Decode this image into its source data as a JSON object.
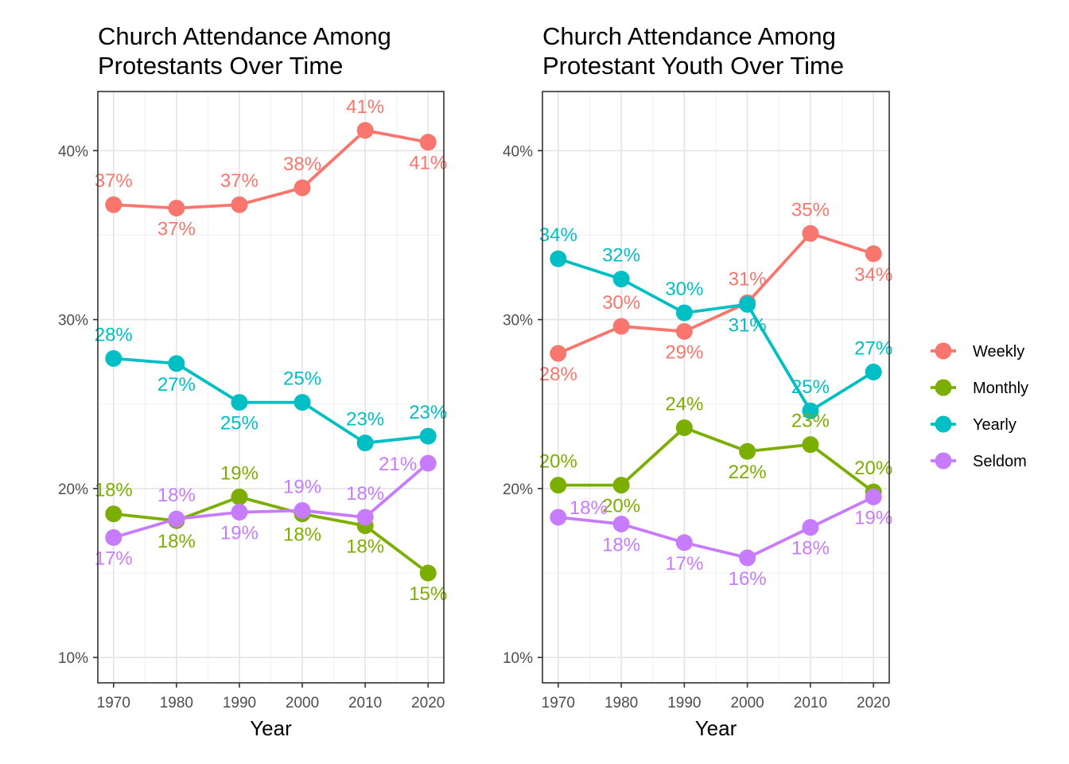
{
  "colors": {
    "Weekly": "#F8766D",
    "Monthly": "#7CAE00",
    "Yearly": "#00BFC4",
    "Seldom": "#C77CFF"
  },
  "legend": [
    "Weekly",
    "Monthly",
    "Yearly",
    "Seldom"
  ],
  "chart_data": [
    {
      "type": "line",
      "title_lines": [
        "Church Attendance Among",
        "Protestants Over Time"
      ],
      "xlabel": "Year",
      "ylabel": "",
      "x": [
        1970,
        1980,
        1990,
        2000,
        2010,
        2020
      ],
      "x_ticks": [
        "1970",
        "1980",
        "1990",
        "2000",
        "2010",
        "2020"
      ],
      "y_ticks": [
        {
          "v": 10,
          "label": "10%"
        },
        {
          "v": 20,
          "label": "20%"
        },
        {
          "v": 30,
          "label": "30%"
        },
        {
          "v": 40,
          "label": "40%"
        }
      ],
      "ylim": [
        8.5,
        43.5
      ],
      "grid": true,
      "series": [
        {
          "name": "Weekly",
          "values": [
            36.8,
            36.6,
            36.8,
            37.8,
            41.2,
            40.5
          ],
          "labels": [
            "37%",
            "37%",
            "37%",
            "38%",
            "41%",
            "41%"
          ],
          "pos": [
            "above",
            "below",
            "above",
            "above",
            "above",
            "below"
          ]
        },
        {
          "name": "Monthly",
          "values": [
            18.5,
            18.1,
            19.5,
            18.5,
            17.8,
            15.0
          ],
          "labels": [
            "18%",
            "18%",
            "19%",
            "18%",
            "18%",
            "15%"
          ],
          "pos": [
            "above",
            "below",
            "above",
            "below",
            "below",
            "below"
          ]
        },
        {
          "name": "Yearly",
          "values": [
            27.7,
            27.4,
            25.1,
            25.1,
            22.7,
            23.1
          ],
          "labels": [
            "28%",
            "27%",
            "25%",
            "25%",
            "23%",
            "23%"
          ],
          "pos": [
            "above",
            "below",
            "below",
            "above",
            "above",
            "above"
          ]
        },
        {
          "name": "Seldom",
          "values": [
            17.1,
            18.2,
            18.6,
            18.7,
            18.3,
            21.5
          ],
          "labels": [
            "17%",
            "18%",
            "19%",
            "19%",
            "18%",
            "21%"
          ],
          "pos": [
            "below",
            "above",
            "below",
            "above",
            "above",
            "left"
          ]
        }
      ]
    },
    {
      "type": "line",
      "title_lines": [
        "Church Attendance Among",
        "Protestant Youth Over Time"
      ],
      "xlabel": "Year",
      "ylabel": "",
      "x": [
        1970,
        1980,
        1990,
        2000,
        2010,
        2020
      ],
      "x_ticks": [
        "1970",
        "1980",
        "1990",
        "2000",
        "2010",
        "2020"
      ],
      "y_ticks": [
        {
          "v": 10,
          "label": "10%"
        },
        {
          "v": 20,
          "label": "20%"
        },
        {
          "v": 30,
          "label": "30%"
        },
        {
          "v": 40,
          "label": "40%"
        }
      ],
      "ylim": [
        8.5,
        43.5
      ],
      "grid": true,
      "series": [
        {
          "name": "Weekly",
          "values": [
            28.0,
            29.6,
            29.3,
            31.0,
            35.1,
            33.9
          ],
          "labels": [
            "28%",
            "30%",
            "29%",
            "31%",
            "35%",
            "34%"
          ],
          "pos": [
            "below",
            "above",
            "below",
            "above",
            "above",
            "below"
          ]
        },
        {
          "name": "Monthly",
          "values": [
            20.2,
            20.2,
            23.6,
            22.2,
            22.6,
            19.8
          ],
          "labels": [
            "20%",
            "20%",
            "24%",
            "22%",
            "23%",
            "20%"
          ],
          "pos": [
            "above",
            "below",
            "above",
            "below",
            "above",
            "above"
          ]
        },
        {
          "name": "Yearly",
          "values": [
            33.6,
            32.4,
            30.4,
            30.9,
            24.6,
            26.9
          ],
          "labels": [
            "34%",
            "32%",
            "30%",
            "31%",
            "25%",
            "27%"
          ],
          "pos": [
            "above",
            "above",
            "above",
            "below",
            "above",
            "above"
          ]
        },
        {
          "name": "Seldom",
          "values": [
            18.3,
            17.9,
            16.8,
            15.9,
            17.7,
            19.5
          ],
          "labels": [
            "18%",
            "18%",
            "17%",
            "16%",
            "18%",
            "19%"
          ],
          "pos": [
            "right",
            "below",
            "below",
            "below",
            "below",
            "below"
          ]
        }
      ]
    }
  ]
}
